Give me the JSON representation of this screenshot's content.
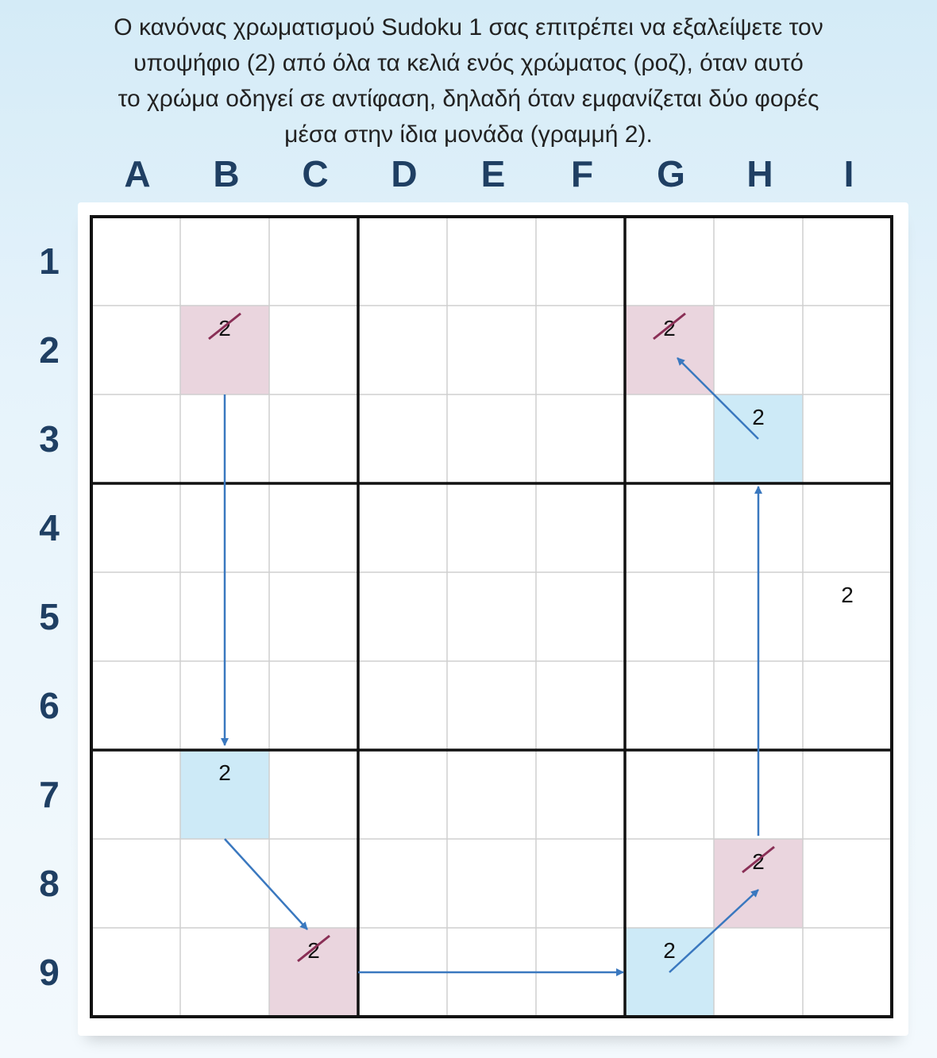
{
  "caption": [
    "Ο κανόνας χρωματισμού Sudoku 1 σας επιτρέπει να εξαλείψετε τον",
    "υποψήφιο (2) από όλα τα κελιά ενός χρώματος (ροζ), όταν αυτό",
    "το χρώμα οδηγεί σε αντίφαση, δηλαδή όταν εμφανίζεται δύο φορές",
    "μέσα στην ίδια μονάδα (γραμμή 2)."
  ],
  "columns": [
    "A",
    "B",
    "C",
    "D",
    "E",
    "F",
    "G",
    "H",
    "I"
  ],
  "rows": [
    "1",
    "2",
    "3",
    "4",
    "5",
    "6",
    "7",
    "8",
    "9"
  ],
  "colors": {
    "pink": "#ead5de",
    "blue": "#cdeaf7",
    "arrow": "#3a78bf",
    "strike": "#8a2f56",
    "label": "#1f3f63"
  },
  "cells": [
    {
      "col": "B",
      "row": 2,
      "fill": "pink",
      "value": "2",
      "eliminated": true
    },
    {
      "col": "G",
      "row": 2,
      "fill": "pink",
      "value": "2",
      "eliminated": true
    },
    {
      "col": "H",
      "row": 3,
      "fill": "blue",
      "value": "2",
      "eliminated": false
    },
    {
      "col": "I",
      "row": 5,
      "fill": "none",
      "value": "2",
      "eliminated": false
    },
    {
      "col": "B",
      "row": 7,
      "fill": "blue",
      "value": "2",
      "eliminated": false
    },
    {
      "col": "H",
      "row": 8,
      "fill": "pink",
      "value": "2",
      "eliminated": true
    },
    {
      "col": "C",
      "row": 9,
      "fill": "pink",
      "value": "2",
      "eliminated": true
    },
    {
      "col": "G",
      "row": 9,
      "fill": "blue",
      "value": "2",
      "eliminated": false
    }
  ],
  "links": [
    {
      "from": "B2",
      "to": "B7"
    },
    {
      "from": "B7",
      "to": "C9"
    },
    {
      "from": "C9",
      "to": "G9"
    },
    {
      "from": "G9",
      "to": "H8"
    },
    {
      "from": "H8",
      "to": "H3"
    },
    {
      "from": "H3",
      "to": "G2"
    }
  ]
}
